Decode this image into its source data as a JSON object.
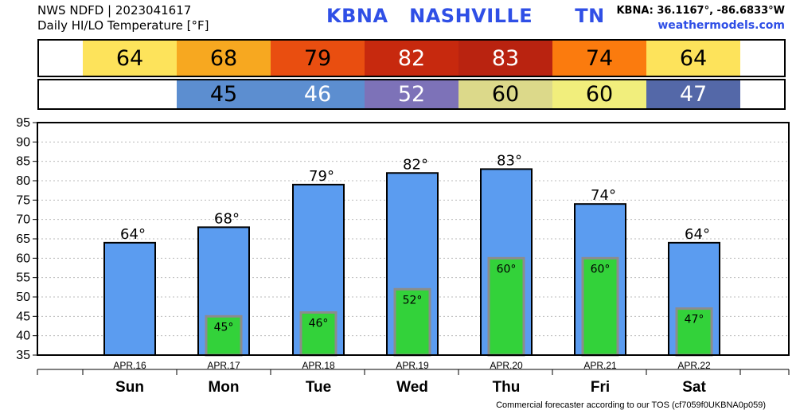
{
  "header": {
    "line1": "NWS NDFD | 2023041617",
    "line2": "Daily HI/LO Temperature [°F]",
    "station": "KBNA   NASHVILLE      TN",
    "coords": "KBNA: 36.1167°, -86.6833°W",
    "site": "weathermodels.com"
  },
  "footer": "Commercial forecaster according to our TOS (cf7059f0UKBNA0p059)",
  "hi_strip": [
    {
      "value": "64",
      "color": "#fde35b",
      "text_color": "#000000"
    },
    {
      "value": "68",
      "color": "#f7a820",
      "text_color": "#000000"
    },
    {
      "value": "79",
      "color": "#e94e10",
      "text_color": "#000000"
    },
    {
      "value": "82",
      "color": "#c7290e",
      "text_color": "#ffffff"
    },
    {
      "value": "83",
      "color": "#b92310",
      "text_color": "#ffffff"
    },
    {
      "value": "74",
      "color": "#fb7b0e",
      "text_color": "#000000"
    },
    {
      "value": "64",
      "color": "#fde35b",
      "text_color": "#000000"
    }
  ],
  "lo_strip": [
    {
      "value": "",
      "color": "#ffffff",
      "text_color": "#000000"
    },
    {
      "value": "45",
      "color": "#5c8ed0",
      "text_color": "#000000"
    },
    {
      "value": "46",
      "color": "#5c8ed0",
      "text_color": "#ffffff"
    },
    {
      "value": "52",
      "color": "#7d72b8",
      "text_color": "#ffffff"
    },
    {
      "value": "60",
      "color": "#dcd98a",
      "text_color": "#000000"
    },
    {
      "value": "60",
      "color": "#f1ee7c",
      "text_color": "#000000"
    },
    {
      "value": "47",
      "color": "#5468a8",
      "text_color": "#ffffff"
    }
  ],
  "chart_data": {
    "type": "bar",
    "categories": [
      "Sun",
      "Mon",
      "Tue",
      "Wed",
      "Thu",
      "Fri",
      "Sat"
    ],
    "dates": [
      "APR.16",
      "APR.17",
      "APR.18",
      "APR.19",
      "APR.20",
      "APR.21",
      "APR.22"
    ],
    "series": [
      {
        "values": [
          64,
          68,
          79,
          82,
          83,
          74,
          64
        ],
        "color": "#5b9cf0"
      },
      {
        "values": [
          null,
          45,
          46,
          52,
          60,
          60,
          47
        ],
        "color": "#33d23a"
      }
    ],
    "hi_labels": [
      "64°",
      "68°",
      "79°",
      "82°",
      "83°",
      "74°",
      "64°"
    ],
    "lo_labels": [
      "",
      "45°",
      "46°",
      "52°",
      "60°",
      "60°",
      "47°"
    ],
    "yticks": [
      "35",
      "40",
      "45",
      "50",
      "55",
      "60",
      "65",
      "70",
      "75",
      "80",
      "85",
      "90",
      "95"
    ],
    "ylim": [
      35,
      95
    ],
    "grid": true
  }
}
